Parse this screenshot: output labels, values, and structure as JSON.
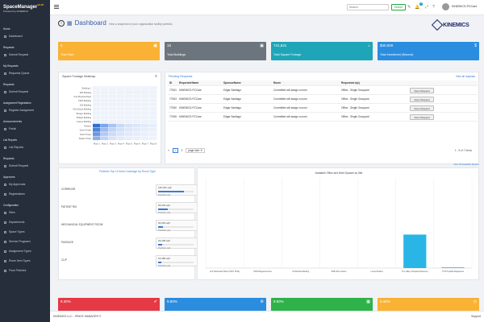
{
  "brand": {
    "title": "SpaceManager",
    "version": "V3.25",
    "powered": "Powered by KINEMICS"
  },
  "sidebar": {
    "sections": [
      {
        "label": "Home",
        "items": [
          "Dashboard"
        ]
      },
      {
        "label": "Requests",
        "items": [
          "Submit Request"
        ]
      },
      {
        "label": "My Requests",
        "items": [
          "Requests Queue"
        ]
      },
      {
        "label": "Requests",
        "items": [
          "Submit Request"
        ]
      },
      {
        "label": "Assignment Registration",
        "items": [
          "Register Assignment"
        ]
      },
      {
        "label": "Announcements",
        "items": [
          "Portal"
        ]
      },
      {
        "label": "List Reports",
        "items": [
          "List Reports"
        ]
      },
      {
        "label": "Requests",
        "items": [
          "Submit Request"
        ]
      },
      {
        "label": "Approvers",
        "items": [
          "My Approvals",
          "Registrations"
        ]
      },
      {
        "label": "Configuration",
        "items": [
          "Sites",
          "Departments",
          "Space Types",
          "Service Programs",
          "Assignment Types",
          "Room Item Types",
          "Floor Finishes"
        ]
      }
    ]
  },
  "topbar": {
    "search_placeholder": "Search",
    "search_button": "Search",
    "notif_count": "2",
    "user": "KINEMICS-PCCare"
  },
  "header": {
    "title": "Dashboard",
    "subtitle": "View a snapshot of your organization facility portfolio",
    "logo": "KINEMICS"
  },
  "kpis": [
    {
      "value": "5",
      "label": "Total Sites",
      "color": "#f9b233",
      "icon": "building-icon"
    },
    {
      "value": "15",
      "label": "Total Buildings",
      "color": "#6c757d",
      "icon": "building-icon"
    },
    {
      "value": "741,631",
      "label": "Total Square Footage",
      "color": "#1ea5b8",
      "icon": "area-icon"
    },
    {
      "value": "$40,000",
      "label": "Total Investment ($/sumd)",
      "color": "#2a8de0",
      "icon": "dollar-icon"
    }
  ],
  "heatmap": {
    "title": "Square Footage Heatmap",
    "y_labels": [
      "Building 1",
      "300 Building",
      "Cnd Physical Plant",
      "C200 Building",
      "100 Building",
      "Old School Building",
      "Bergan Building",
      "Phillips Building",
      "Lowery Building",
      "Podium",
      "South Tower",
      "North Tower",
      "Parker Tower"
    ],
    "x_labels": [
      "Floor 1",
      "Floor 2",
      "Floor 3",
      "Floor 4",
      "Floor 5",
      "Floor 6",
      "Floor 7",
      "Floor 8"
    ]
  },
  "pending": {
    "title": "Pending Requests",
    "view_all": "View all requests",
    "columns": [
      "ID",
      "RequesterName",
      "SponsorName",
      "Room",
      "Requested a(s)"
    ],
    "rows": [
      {
        "id": "77061",
        "requester": "KINEMICS-PCCare",
        "sponsor": "Edgar Santiago",
        "room": "Committee will assign a room",
        "type": "Office - Single Occupant",
        "action": "Open Request"
      },
      {
        "id": "77063",
        "requester": "KINEMICS-PCCare",
        "sponsor": "Edgar Santiago",
        "room": "Committee will assign a room",
        "type": "Office - Single Occupant",
        "action": "Open Request"
      },
      {
        "id": "77060",
        "requester": "KINEMICS-PCCare",
        "sponsor": "Edgar Santiago",
        "room": "Committee will assign a room",
        "type": "Office - Single Occupant",
        "action": "Open Request"
      },
      {
        "id": "77065",
        "requester": "KINEMICS-PCCare",
        "sponsor": "Edgar Santiago",
        "room": "Committee will assign a room",
        "type": "Office - Single Occupant",
        "action": "Open Request"
      }
    ],
    "pager": {
      "first": "«",
      "p1": "1",
      "p2": "2",
      "page_size": "page size: 5",
      "info": "1 - 5 of 7 items"
    }
  },
  "coverage": {
    "title": "Portfolio Top 10 Area Coverage by Room Type",
    "rows": [
      {
        "name": "CORRIDOR",
        "area": "139,331 sqft",
        "pct": 0.72,
        "pct_label": "Portfolio (of)"
      },
      {
        "name": "PATIENT RM",
        "area": "54,633 sqft",
        "pct": 0.28,
        "pct_label": "Portfolio (of)"
      },
      {
        "name": "MECHANICAL EQUIPMENT ROOM",
        "area": "26,063 sqft",
        "pct": 0.14,
        "pct_label": "Portfolio (of)"
      },
      {
        "name": "PASSAGE",
        "area": "23,338 sqft",
        "pct": 0.12,
        "pct_label": "Portfolio (of)"
      },
      {
        "name": "CLIP",
        "area": "16,389 sqft",
        "pct": 0.08,
        "pct_label": "Portfolio (of)"
      }
    ]
  },
  "view_all_spaces": "View All Available Spaces",
  "chart_data": {
    "type": "bar",
    "title": "Available Office and Work Spaces by Site",
    "categories": [
      "101 Westheath Plaza (TEST SITE)",
      "5000 Ridgewood Ave",
      "60 Medical Building",
      "SNB Old Location",
      "Lucas Pavilion",
      "The Valley Hospital (Paramus)",
      "TVH Hospital Ridgewood"
    ],
    "values": [
      0,
      0,
      0,
      0,
      0,
      52,
      1
    ],
    "ylim": [
      0,
      140
    ],
    "color": "#29b6e6"
  },
  "kpis2": [
    {
      "value": "9.30%",
      "label": "Vacation",
      "color": "#e53945",
      "icon": "check-icon"
    },
    {
      "value": "9.80%",
      "label": "Coordinated",
      "color": "#2a8de0",
      "icon": "gear-icon"
    },
    {
      "value": "9.93%",
      "label": "Inventoried",
      "color": "#2fb24a",
      "icon": "box-icon"
    },
    {
      "value": "0.40%",
      "label": "Expected",
      "color": "#f9b233",
      "icon": "clock-icon"
    }
  ],
  "footer": {
    "left": "KINEMICS LLC - SPACE MANAGER ©",
    "right": "Support"
  }
}
